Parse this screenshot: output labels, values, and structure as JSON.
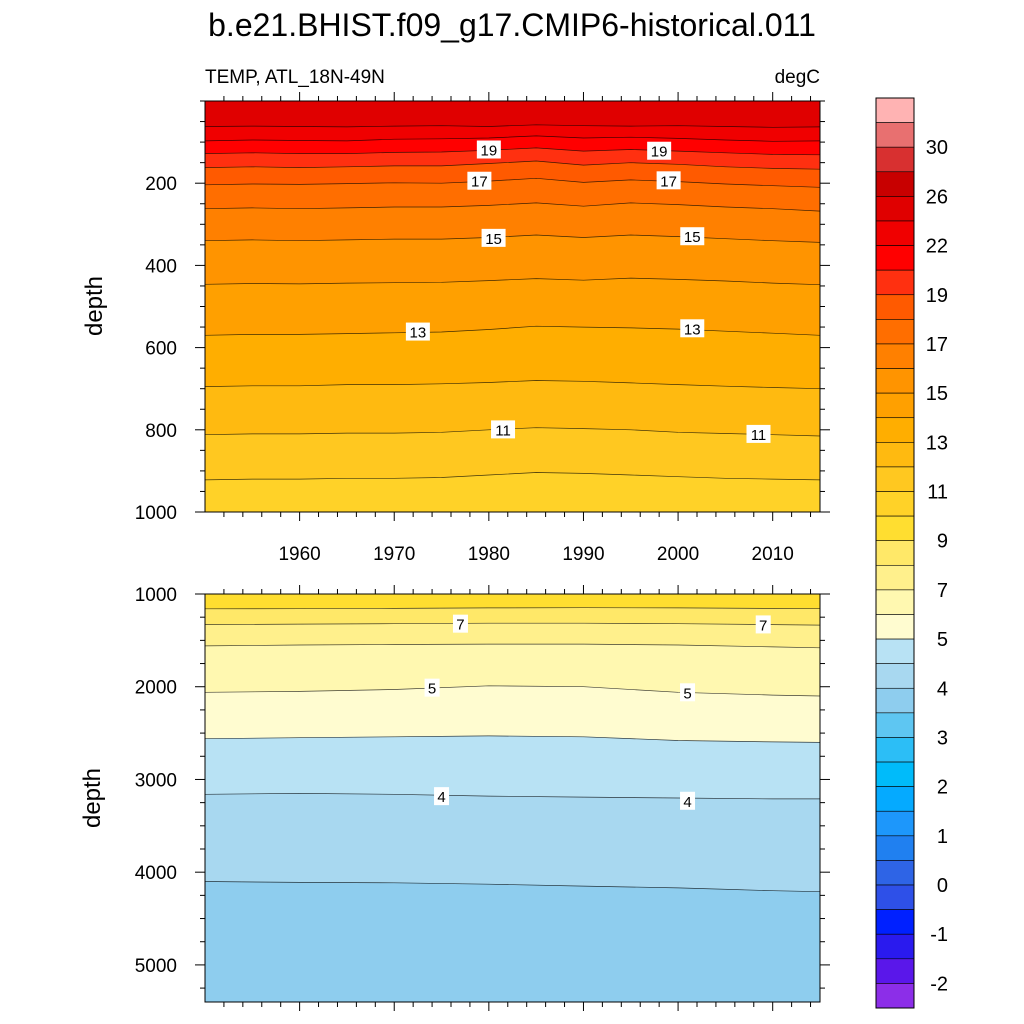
{
  "title": "b.e21.BHIST.f09_g17.CMIP6-historical.011",
  "colors": {
    "frame": "#000000",
    "contour_line": "#000000",
    "label_box": "#ffffff"
  },
  "chart_data": [
    {
      "type": "heatmap",
      "subtype": "filled-contour",
      "panel": "upper",
      "left_title": "TEMP, ATL_18N-49N",
      "right_title": "degC",
      "ylabel": "depth",
      "xlabel": "",
      "xlim": [
        1950,
        2015
      ],
      "ylim": [
        1000,
        0
      ],
      "y_reversed": true,
      "x_ticks": [
        1960,
        1970,
        1980,
        1990,
        2000,
        2010
      ],
      "x_tick_labels": [
        "1960",
        "1970",
        "1980",
        "1990",
        "2000",
        "2010"
      ],
      "y_ticks": [
        200,
        400,
        600,
        800,
        1000
      ],
      "y_tick_labels": [
        "200",
        "400",
        "600",
        "800",
        "1000"
      ],
      "grid": false,
      "contour_lines": [
        {
          "level": 21,
          "x": [
            1950,
            1955,
            1960,
            1965,
            1970,
            1975,
            1980,
            1985,
            1990,
            1995,
            2000,
            2005,
            2010,
            2015
          ],
          "depth": [
            62,
            61,
            62,
            63,
            61,
            60,
            62,
            58,
            60,
            61,
            60,
            62,
            64,
            63
          ]
        },
        {
          "level": 20,
          "x": [
            1950,
            1955,
            1960,
            1965,
            1970,
            1975,
            1980,
            1985,
            1990,
            1995,
            2000,
            2005,
            2010,
            2015
          ],
          "depth": [
            97,
            95,
            96,
            97,
            93,
            92,
            90,
            85,
            90,
            88,
            91,
            95,
            98,
            97
          ]
        },
        {
          "level": 19,
          "x": [
            1950,
            1955,
            1960,
            1965,
            1970,
            1975,
            1980,
            1985,
            1990,
            1995,
            2000,
            2005,
            2010,
            2015
          ],
          "depth": [
            128,
            126,
            128,
            128,
            125,
            124,
            120,
            114,
            122,
            118,
            122,
            126,
            130,
            131
          ]
        },
        {
          "level": 18,
          "x": [
            1950,
            1955,
            1960,
            1965,
            1970,
            1975,
            1980,
            1985,
            1990,
            1995,
            2000,
            2005,
            2010,
            2015
          ],
          "depth": [
            162,
            160,
            162,
            160,
            158,
            158,
            152,
            146,
            156,
            150,
            154,
            160,
            164,
            166
          ]
        },
        {
          "level": 17,
          "x": [
            1950,
            1955,
            1960,
            1965,
            1970,
            1975,
            1980,
            1985,
            1990,
            1995,
            2000,
            2005,
            2010,
            2015
          ],
          "depth": [
            204,
            202,
            203,
            201,
            199,
            200,
            195,
            188,
            198,
            192,
            196,
            202,
            206,
            210
          ]
        },
        {
          "level": 16,
          "x": [
            1950,
            1955,
            1960,
            1965,
            1970,
            1975,
            1980,
            1985,
            1990,
            1995,
            2000,
            2005,
            2010,
            2015
          ],
          "depth": [
            262,
            260,
            262,
            260,
            258,
            258,
            254,
            248,
            256,
            248,
            252,
            258,
            262,
            268
          ]
        },
        {
          "level": 15,
          "x": [
            1950,
            1955,
            1960,
            1965,
            1970,
            1975,
            1980,
            1985,
            1990,
            1995,
            2000,
            2005,
            2010,
            2015
          ],
          "depth": [
            340,
            338,
            340,
            338,
            336,
            336,
            332,
            326,
            332,
            326,
            330,
            335,
            340,
            344
          ]
        },
        {
          "level": 14,
          "x": [
            1950,
            1955,
            1960,
            1965,
            1970,
            1975,
            1980,
            1985,
            1990,
            1995,
            2000,
            2005,
            2010,
            2015
          ],
          "depth": [
            446,
            444,
            445,
            443,
            442,
            441,
            437,
            432,
            436,
            431,
            434,
            438,
            443,
            447
          ]
        },
        {
          "level": 13,
          "x": [
            1950,
            1955,
            1960,
            1965,
            1970,
            1975,
            1980,
            1985,
            1990,
            1995,
            2000,
            2005,
            2010,
            2015
          ],
          "depth": [
            570,
            568,
            568,
            566,
            564,
            562,
            556,
            548,
            550,
            552,
            555,
            560,
            565,
            570
          ]
        },
        {
          "level": 12,
          "x": [
            1950,
            1955,
            1960,
            1965,
            1970,
            1975,
            1980,
            1985,
            1990,
            1995,
            2000,
            2005,
            2010,
            2015
          ],
          "depth": [
            695,
            693,
            693,
            690,
            690,
            688,
            685,
            680,
            682,
            686,
            690,
            694,
            697,
            700
          ]
        },
        {
          "level": 11,
          "x": [
            1950,
            1955,
            1960,
            1965,
            1970,
            1975,
            1980,
            1985,
            1990,
            1995,
            2000,
            2005,
            2010,
            2015
          ],
          "depth": [
            812,
            810,
            810,
            808,
            808,
            806,
            800,
            795,
            797,
            800,
            806,
            809,
            812,
            815
          ]
        },
        {
          "level": 10,
          "x": [
            1950,
            1955,
            1960,
            1965,
            1970,
            1975,
            1980,
            1985,
            1990,
            1995,
            2000,
            2005,
            2010,
            2015
          ],
          "depth": [
            922,
            920,
            920,
            918,
            918,
            916,
            910,
            904,
            906,
            910,
            914,
            918,
            920,
            922
          ]
        }
      ],
      "line_labels": [
        {
          "text": "19",
          "x": 1980,
          "depth": 118
        },
        {
          "text": "19",
          "x": 1998,
          "depth": 121
        },
        {
          "text": "17",
          "x": 1979,
          "depth": 194
        },
        {
          "text": "17",
          "x": 1999,
          "depth": 193
        },
        {
          "text": "15",
          "x": 1980.5,
          "depth": 333
        },
        {
          "text": "15",
          "x": 2001.5,
          "depth": 329
        },
        {
          "text": "13",
          "x": 1972.5,
          "depth": 561
        },
        {
          "text": "13",
          "x": 2001.5,
          "depth": 553
        },
        {
          "text": "11",
          "x": 1981.5,
          "depth": 799
        },
        {
          "text": "11",
          "x": 2008.5,
          "depth": 810
        }
      ]
    },
    {
      "type": "heatmap",
      "subtype": "filled-contour",
      "panel": "lower",
      "ylabel": "depth",
      "xlabel": "",
      "xlim": [
        1950,
        2015
      ],
      "ylim": [
        5400,
        1000
      ],
      "y_reversed": true,
      "y_ticks": [
        1000,
        2000,
        3000,
        4000,
        5000
      ],
      "y_tick_labels": [
        "1000",
        "2000",
        "3000",
        "4000",
        "5000"
      ],
      "grid": false,
      "contour_lines": [
        {
          "level": 8,
          "x": [
            1950,
            1960,
            1970,
            1980,
            1990,
            2000,
            2010,
            2015
          ],
          "depth": [
            1160,
            1158,
            1155,
            1150,
            1148,
            1150,
            1155,
            1158
          ]
        },
        {
          "level": 7,
          "x": [
            1950,
            1960,
            1970,
            1980,
            1990,
            2000,
            2010,
            2015
          ],
          "depth": [
            1330,
            1325,
            1320,
            1315,
            1315,
            1320,
            1330,
            1335
          ]
        },
        {
          "level": 6,
          "x": [
            1950,
            1960,
            1970,
            1980,
            1990,
            2000,
            2010,
            2015
          ],
          "depth": [
            1560,
            1550,
            1545,
            1540,
            1540,
            1550,
            1570,
            1580
          ]
        },
        {
          "level": 5,
          "x": [
            1950,
            1960,
            1970,
            1980,
            1990,
            2000,
            2010,
            2015
          ],
          "depth": [
            2060,
            2050,
            2030,
            1990,
            2000,
            2060,
            2090,
            2100
          ]
        },
        {
          "level": 4.5,
          "x": [
            1950,
            1960,
            1970,
            1980,
            1990,
            2000,
            2010,
            2015
          ],
          "depth": [
            2560,
            2550,
            2540,
            2530,
            2540,
            2580,
            2595,
            2600
          ]
        },
        {
          "level": 4,
          "x": [
            1950,
            1960,
            1970,
            1980,
            1990,
            2000,
            2010,
            2015
          ],
          "depth": [
            3160,
            3150,
            3160,
            3180,
            3190,
            3200,
            3210,
            3210
          ]
        },
        {
          "level": 3.5,
          "x": [
            1950,
            1960,
            1970,
            1980,
            1990,
            2000,
            2010,
            2015
          ],
          "depth": [
            4100,
            4110,
            4115,
            4130,
            4150,
            4170,
            4200,
            4210
          ]
        }
      ],
      "line_labels": [
        {
          "text": "7",
          "x": 1977,
          "depth": 1320
        },
        {
          "text": "7",
          "x": 2009,
          "depth": 1328
        },
        {
          "text": "5",
          "x": 1974,
          "depth": 2010
        },
        {
          "text": "5",
          "x": 2001,
          "depth": 2060
        },
        {
          "text": "4",
          "x": 1975,
          "depth": 3180
        },
        {
          "text": "4",
          "x": 2001,
          "depth": 3230
        }
      ]
    }
  ],
  "colorbar": {
    "levels": [
      -2.5,
      -2,
      -1.5,
      -1,
      -0.5,
      0,
      0.5,
      1,
      1.5,
      2,
      2.5,
      3,
      3.5,
      4,
      4.5,
      5,
      6,
      7,
      8,
      9,
      10,
      11,
      12,
      13,
      14,
      15,
      16,
      17,
      18,
      19,
      20,
      22,
      24,
      26,
      28,
      30
    ],
    "tick_labels": [
      "30",
      "26",
      "22",
      "19",
      "17",
      "15",
      "13",
      "11",
      "9",
      "7",
      "5",
      "4",
      "3",
      "2",
      "1",
      "0",
      "-1",
      "-2"
    ],
    "colors": [
      "#ffb3b3",
      "#e87070",
      "#d83030",
      "#c80000",
      "#e00000",
      "#f00000",
      "#ff0000",
      "#ff3010",
      "#ff5a00",
      "#ff6e00",
      "#ff8000",
      "#ff9400",
      "#ffa000",
      "#ffae00",
      "#ffba10",
      "#ffc820",
      "#ffd228",
      "#ffde30",
      "#ffe868",
      "#fff08c",
      "#fff8b0",
      "#fffcd0",
      "#b8e2f4",
      "#a8d8f0",
      "#8ecdee",
      "#5ec6f2",
      "#2cbef6",
      "#00bbfa",
      "#05aaff",
      "#1d97fb",
      "#2080f0",
      "#2e64e6",
      "#2e50e8",
      "#0020ff",
      "#2a1aee",
      "#5a17ea",
      "#8c2ee8"
    ],
    "color_notes": "top-to-bottom, 37 boxes"
  }
}
